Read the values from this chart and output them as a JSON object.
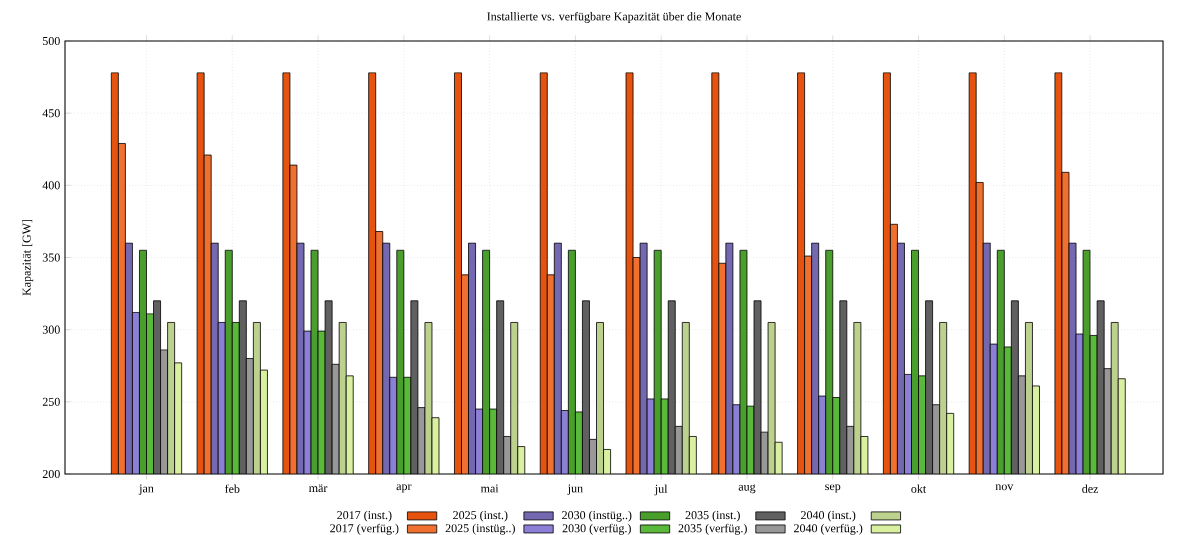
{
  "chart_data": {
    "type": "bar",
    "title": "Installierte vs. verfügbare Kapazität über die Monate",
    "ylabel": "Kapazität  [GW]",
    "categories": [
      "jan",
      "feb",
      "mär",
      "apr",
      "mai",
      "jun",
      "jul",
      "aug",
      "sep",
      "okt",
      "nov",
      "dez"
    ],
    "series": [
      {
        "name": "2017 (inst.)",
        "color": "#e5530f",
        "values": [
          478,
          478,
          478,
          478,
          478,
          478,
          478,
          478,
          478,
          478,
          478,
          478
        ]
      },
      {
        "name": "2017 (verfüg.)",
        "color": "#f07030",
        "values": [
          429,
          421,
          414,
          368,
          338,
          338,
          350,
          346,
          351,
          373,
          402,
          409
        ]
      },
      {
        "name": "2025 (inst.)",
        "color": "#7469b0",
        "values": [
          360,
          360,
          360,
          360,
          360,
          360,
          360,
          360,
          360,
          360,
          360,
          360
        ]
      },
      {
        "name": "2025 (instüg..)",
        "color": "#8b7fd6",
        "values": [
          312,
          305,
          299,
          267,
          245,
          244,
          252,
          248,
          254,
          269,
          290,
          297
        ]
      },
      {
        "name": "2030 (instüg..)",
        "color": "#4a9e2c",
        "values": [
          355,
          355,
          355,
          355,
          355,
          355,
          355,
          355,
          355,
          355,
          355,
          355
        ]
      },
      {
        "name": "2030 (verfüg.)",
        "color": "#5ab83a",
        "values": [
          311,
          305,
          299,
          267,
          245,
          243,
          252,
          247,
          253,
          268,
          288,
          296
        ]
      },
      {
        "name": "2035 (inst.)",
        "color": "#606060",
        "values": [
          320,
          320,
          320,
          320,
          320,
          320,
          320,
          320,
          320,
          320,
          320,
          320
        ]
      },
      {
        "name": "2035 (verfüg.)",
        "color": "#989898",
        "values": [
          286,
          280,
          276,
          246,
          226,
          224,
          233,
          229,
          233,
          248,
          268,
          273
        ]
      },
      {
        "name": "2040 (inst.)",
        "color": "#bdd18f",
        "values": [
          305,
          305,
          305,
          305,
          305,
          305,
          305,
          305,
          305,
          305,
          305,
          305
        ]
      },
      {
        "name": "2040 (verfüg.)",
        "color": "#d9f0a0",
        "values": [
          277,
          272,
          268,
          239,
          219,
          217,
          226,
          222,
          226,
          242,
          261,
          266
        ]
      }
    ],
    "ylim": [
      200,
      500
    ],
    "yticks": [
      200,
      250,
      300,
      350,
      400,
      450,
      500
    ],
    "grid": true,
    "legend": "bottom"
  }
}
